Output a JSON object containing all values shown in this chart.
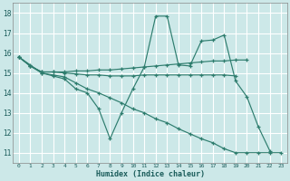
{
  "xlabel": "Humidex (Indice chaleur)",
  "xlim": [
    -0.5,
    23.5
  ],
  "ylim": [
    10.5,
    18.5
  ],
  "yticks": [
    11,
    12,
    13,
    14,
    15,
    16,
    17,
    18
  ],
  "xticks": [
    0,
    1,
    2,
    3,
    4,
    5,
    6,
    7,
    8,
    9,
    10,
    11,
    12,
    13,
    14,
    15,
    16,
    17,
    18,
    19,
    20,
    21,
    22,
    23
  ],
  "background_color": "#cce8e8",
  "grid_color": "#ffffff",
  "line_color": "#2e7d6e",
  "lines": [
    {
      "x": [
        0,
        1,
        2,
        3,
        4,
        5,
        6,
        7,
        8,
        9,
        10,
        11,
        12,
        13,
        14,
        15,
        16,
        17,
        18,
        19,
        20,
        21,
        22
      ],
      "y": [
        15.8,
        15.4,
        15.0,
        14.85,
        14.7,
        14.2,
        14.0,
        13.2,
        11.7,
        13.0,
        14.2,
        15.3,
        17.85,
        17.85,
        15.4,
        15.35,
        16.6,
        16.65,
        16.9,
        14.6,
        13.8,
        12.3,
        11.1
      ]
    },
    {
      "x": [
        0,
        1,
        2,
        3,
        4,
        5,
        6,
        7,
        8,
        9,
        10,
        11,
        12,
        13,
        14,
        15,
        16,
        17,
        18,
        19,
        20
      ],
      "y": [
        15.8,
        15.35,
        15.05,
        15.05,
        15.05,
        15.1,
        15.1,
        15.15,
        15.15,
        15.2,
        15.25,
        15.3,
        15.35,
        15.4,
        15.45,
        15.5,
        15.55,
        15.6,
        15.6,
        15.65,
        15.65
      ]
    },
    {
      "x": [
        0,
        1,
        2,
        3,
        4,
        5,
        6,
        7,
        8,
        9,
        10,
        11,
        12,
        13,
        14,
        15,
        16,
        17,
        18,
        19
      ],
      "y": [
        15.8,
        15.35,
        15.05,
        15.05,
        15.0,
        14.95,
        14.9,
        14.9,
        14.85,
        14.85,
        14.85,
        14.9,
        14.9,
        14.9,
        14.9,
        14.9,
        14.9,
        14.9,
        14.9,
        14.85
      ]
    },
    {
      "x": [
        0,
        1,
        2,
        3,
        4,
        5,
        6,
        7,
        8,
        9,
        10,
        11,
        12,
        13,
        14,
        15,
        16,
        17,
        18,
        19,
        20,
        21,
        22,
        23
      ],
      "y": [
        15.8,
        15.35,
        15.0,
        14.9,
        14.8,
        14.5,
        14.2,
        14.0,
        13.75,
        13.5,
        13.2,
        13.0,
        12.7,
        12.5,
        12.2,
        11.95,
        11.7,
        11.5,
        11.2,
        11.0,
        11.0,
        11.0,
        11.0,
        11.0
      ]
    }
  ]
}
